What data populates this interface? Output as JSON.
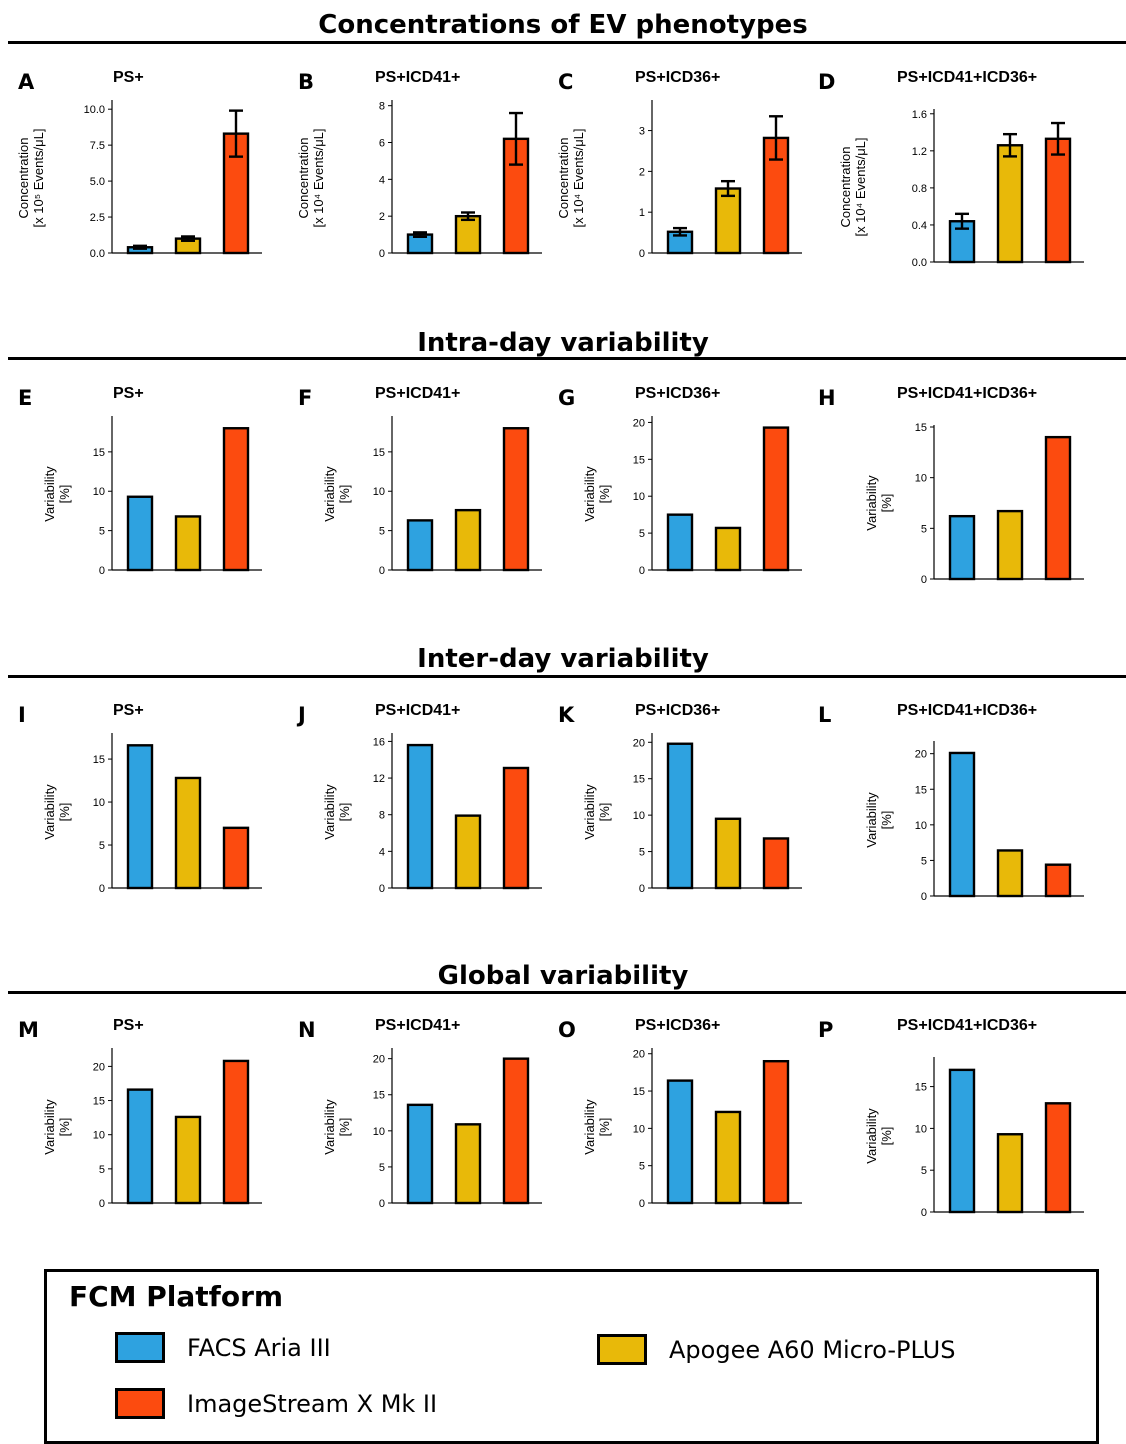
{
  "sections": [
    {
      "title": "Concentrations of EV phenotypes"
    },
    {
      "title": "Intra-day variability"
    },
    {
      "title": "Inter-day variability"
    },
    {
      "title": "Global variability"
    }
  ],
  "colors": {
    "facs": "#2ea2e0",
    "apogee": "#e8b909",
    "imagestream": "#fc4b0f"
  },
  "legend": {
    "title": "FCM Platform",
    "items": [
      {
        "label": "FACS Aria III",
        "color": "#2ea2e0"
      },
      {
        "label": "Apogee A60 Micro-PLUS",
        "color": "#e8b909"
      },
      {
        "label": "ImageStream X Mk II",
        "color": "#fc4b0f"
      }
    ]
  },
  "chart_data": [
    {
      "panel": "A",
      "title": "PS+",
      "type": "bar",
      "ylabel_line1": "Concentration",
      "ylabel_line2": "[x 10⁵ Events/μL]",
      "values": [
        0.4,
        1.0,
        8.3
      ],
      "errors": [
        0.1,
        0.15,
        1.6
      ],
      "ylim": [
        0,
        10.5
      ],
      "ticks": [
        "0.0",
        "2.5",
        "5.0",
        "7.5",
        "10.0"
      ],
      "tick_values": [
        0,
        2.5,
        5,
        7.5,
        10
      ]
    },
    {
      "panel": "B",
      "title": "PS+ICD41+",
      "type": "bar",
      "ylabel_line1": "Concentration",
      "ylabel_line2": "[x 10⁴ Events/μL]",
      "values": [
        1.0,
        2.0,
        6.2
      ],
      "errors": [
        0.12,
        0.2,
        1.4
      ],
      "ylim": [
        0,
        8.2
      ],
      "ticks": [
        "0",
        "2",
        "4",
        "6",
        "8"
      ],
      "tick_values": [
        0,
        2,
        4,
        6,
        8
      ]
    },
    {
      "panel": "C",
      "title": "PS+ICD36+",
      "type": "bar",
      "ylabel_line1": "Concentration",
      "ylabel_line2": "[x 10⁴ Events/μL]",
      "values": [
        0.52,
        1.58,
        2.82
      ],
      "errors": [
        0.09,
        0.18,
        0.53
      ],
      "ylim": [
        0,
        3.7
      ],
      "ticks": [
        "0",
        "1",
        "2",
        "3"
      ],
      "tick_values": [
        0,
        1,
        2,
        3
      ]
    },
    {
      "panel": "D",
      "title": "PS+ICD41+ICD36+",
      "type": "bar",
      "ylabel_line1": "Concentration",
      "ylabel_line2": "[x 10⁴ Events/μL]",
      "values": [
        0.44,
        1.26,
        1.33
      ],
      "errors": [
        0.08,
        0.12,
        0.17
      ],
      "ylim": [
        0,
        1.63
      ],
      "ticks": [
        "0.0",
        "0.4",
        "0.8",
        "1.2",
        "1.6"
      ],
      "tick_values": [
        0,
        0.4,
        0.8,
        1.2,
        1.6
      ]
    },
    {
      "panel": "E",
      "title": "PS+",
      "type": "bar",
      "ylabel_line1": "Variability",
      "ylabel_line2": "[%]",
      "values": [
        9.3,
        6.8,
        18.0
      ],
      "ylim": [
        0,
        19.3
      ],
      "ticks": [
        "0",
        "5",
        "10",
        "15"
      ],
      "tick_values": [
        0,
        5,
        10,
        15
      ]
    },
    {
      "panel": "F",
      "title": "PS+ICD41+",
      "type": "bar",
      "ylabel_line1": "Variability",
      "ylabel_line2": "[%]",
      "values": [
        6.3,
        7.6,
        18.0
      ],
      "ylim": [
        0,
        19.3
      ],
      "ticks": [
        "0",
        "5",
        "10",
        "15"
      ],
      "tick_values": [
        0,
        5,
        10,
        15
      ]
    },
    {
      "panel": "G",
      "title": "PS+ICD36+",
      "type": "bar",
      "ylabel_line1": "Variability",
      "ylabel_line2": "[%]",
      "values": [
        7.5,
        5.7,
        19.3
      ],
      "ylim": [
        0,
        20.6
      ],
      "ticks": [
        "0",
        "5",
        "10",
        "15",
        "20"
      ],
      "tick_values": [
        0,
        5,
        10,
        15,
        20
      ]
    },
    {
      "panel": "H",
      "title": "PS+ICD41+ICD36+",
      "type": "bar",
      "ylabel_line1": "Variability",
      "ylabel_line2": "[%]",
      "values": [
        6.2,
        6.7,
        14.0
      ],
      "ylim": [
        0,
        15.0
      ],
      "ticks": [
        "0",
        "5",
        "10",
        "15"
      ],
      "tick_values": [
        0,
        5,
        10,
        15
      ]
    },
    {
      "panel": "I",
      "title": "PS+",
      "type": "bar",
      "ylabel_line1": "Variability",
      "ylabel_line2": "[%]",
      "values": [
        16.6,
        12.8,
        7.0
      ],
      "ylim": [
        0,
        17.8
      ],
      "ticks": [
        "0",
        "5",
        "10",
        "15"
      ],
      "tick_values": [
        0,
        5,
        10,
        15
      ]
    },
    {
      "panel": "J",
      "title": "PS+ICD41+",
      "type": "bar",
      "ylabel_line1": "Variability",
      "ylabel_line2": "[%]",
      "values": [
        15.6,
        7.9,
        13.1
      ],
      "ylim": [
        0,
        16.7
      ],
      "ticks": [
        "0",
        "4",
        "8",
        "12",
        "16"
      ],
      "tick_values": [
        0,
        4,
        8,
        12,
        16
      ]
    },
    {
      "panel": "K",
      "title": "PS+ICD36+",
      "type": "bar",
      "ylabel_line1": "Variability",
      "ylabel_line2": "[%]",
      "values": [
        19.8,
        9.5,
        6.8
      ],
      "ylim": [
        0,
        21.0
      ],
      "ticks": [
        "0",
        "5",
        "10",
        "15",
        "20"
      ],
      "tick_values": [
        0,
        5,
        10,
        15,
        20
      ]
    },
    {
      "panel": "L",
      "title": "PS+ICD41+ICD36+",
      "type": "bar",
      "ylabel_line1": "Variability",
      "ylabel_line2": "[%]",
      "values": [
        20.1,
        6.4,
        4.4
      ],
      "ylim": [
        0,
        21.5
      ],
      "ticks": [
        "0",
        "5",
        "10",
        "15",
        "20"
      ],
      "tick_values": [
        0,
        5,
        10,
        15,
        20
      ]
    },
    {
      "panel": "M",
      "title": "PS+",
      "type": "bar",
      "ylabel_line1": "Variability",
      "ylabel_line2": "[%]",
      "values": [
        16.6,
        12.6,
        20.8
      ],
      "ylim": [
        0,
        22.4
      ],
      "ticks": [
        "0",
        "5",
        "10",
        "15",
        "20"
      ],
      "tick_values": [
        0,
        5,
        10,
        15,
        20
      ]
    },
    {
      "panel": "N",
      "title": "PS+ICD41+",
      "type": "bar",
      "ylabel_line1": "Variability",
      "ylabel_line2": "[%]",
      "values": [
        13.6,
        10.9,
        20.0
      ],
      "ylim": [
        0,
        21.2
      ],
      "ticks": [
        "0",
        "5",
        "10",
        "15",
        "20"
      ],
      "tick_values": [
        0,
        5,
        10,
        15,
        20
      ]
    },
    {
      "panel": "O",
      "title": "PS+ICD36+",
      "type": "bar",
      "ylabel_line1": "Variability",
      "ylabel_line2": "[%]",
      "values": [
        16.4,
        12.2,
        19.0
      ],
      "ylim": [
        0,
        20.5
      ],
      "ticks": [
        "0",
        "5",
        "10",
        "15",
        "20"
      ],
      "tick_values": [
        0,
        5,
        10,
        15,
        20
      ]
    },
    {
      "panel": "P",
      "title": "PS+ICD41+ICD36+",
      "type": "bar",
      "ylabel_line1": "Variability",
      "ylabel_line2": "[%]",
      "values": [
        17.0,
        9.3,
        13.0
      ],
      "ylim": [
        0,
        18.3
      ],
      "ticks": [
        "0",
        "5",
        "10",
        "15"
      ],
      "tick_values": [
        0,
        5,
        10,
        15
      ]
    }
  ]
}
